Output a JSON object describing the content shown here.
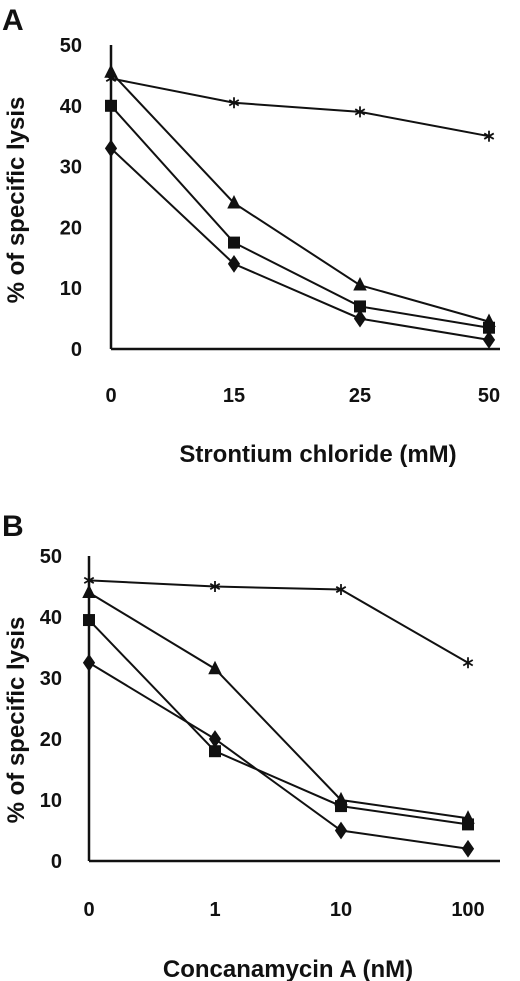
{
  "chart_data": [
    {
      "panel": "A",
      "type": "line",
      "categories": [
        "0",
        "15",
        "25",
        "50"
      ],
      "xlabel": "Strontium chloride (mM)",
      "ylabel": "% of specific lysis",
      "ylim": [
        0,
        50
      ],
      "yticks": [
        "0",
        "10",
        "20",
        "30",
        "40",
        "50"
      ],
      "series": [
        {
          "marker": "star",
          "values": [
            44.5,
            40.5,
            39,
            35
          ]
        },
        {
          "marker": "triangle",
          "values": [
            45.5,
            24,
            10.5,
            4.5
          ]
        },
        {
          "marker": "square",
          "values": [
            40,
            17.5,
            7,
            3.5
          ]
        },
        {
          "marker": "diamond",
          "values": [
            33,
            14,
            5,
            1.5
          ]
        }
      ]
    },
    {
      "panel": "B",
      "type": "line",
      "categories": [
        "0",
        "1",
        "10",
        "100"
      ],
      "xlabel": "Concanamycin A (nM)",
      "ylabel": "% of specific lysis",
      "ylim": [
        0,
        50
      ],
      "yticks": [
        "0",
        "10",
        "20",
        "30",
        "40",
        "50"
      ],
      "series": [
        {
          "marker": "star",
          "values": [
            46,
            45,
            44.5,
            32.5
          ]
        },
        {
          "marker": "triangle",
          "values": [
            44,
            31.5,
            10,
            7
          ]
        },
        {
          "marker": "square",
          "values": [
            39.5,
            18,
            9,
            6
          ]
        },
        {
          "marker": "diamond",
          "values": [
            32.5,
            20,
            5,
            2
          ]
        }
      ]
    }
  ]
}
